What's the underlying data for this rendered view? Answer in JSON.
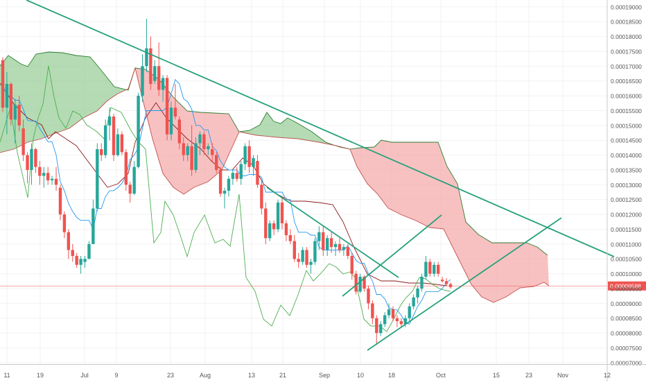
{
  "chart_data": {
    "type": "candlestick",
    "title": "",
    "price_axis": {
      "ticks": [
        "0.00019000",
        "0.00018500",
        "0.00018000",
        "0.00017500",
        "0.00017000",
        "0.00016500",
        "0.00016000",
        "0.00015500",
        "0.00015000",
        "0.00014500",
        "0.00014000",
        "0.00013500",
        "0.00013000",
        "0.00012500",
        "0.00012000",
        "0.00011500",
        "0.00011000",
        "0.00010500",
        "0.00010000",
        "0.00009500",
        "0.00009000",
        "0.00008500",
        "0.00008000",
        "0.00007500",
        "0.00007000"
      ],
      "current_price_label": "0.00009588",
      "current_price": 9.588e-05,
      "range": [
        6.95e-05,
        0.0001923
      ]
    },
    "time_axis": {
      "labels": [
        "11",
        "19",
        "Jul",
        "9",
        "23",
        "Aug",
        "13",
        "21",
        "Sep",
        "10",
        "18",
        "Oct",
        "15",
        "23",
        "Nov",
        "12"
      ]
    },
    "candles_ohlc": [
      [
        0.000172,
        0.000173,
        0.0001545,
        0.000156
      ],
      [
        0.000156,
        0.000168,
        0.000147,
        0.000164
      ],
      [
        0.000164,
        0.0001645,
        0.00015,
        0.000152
      ],
      [
        0.000152,
        0.000159,
        0.000144,
        0.000157
      ],
      [
        0.000157,
        0.00016,
        0.000148,
        0.00015
      ],
      [
        0.000149,
        0.000152,
        0.000138,
        0.00014
      ],
      [
        0.00014,
        0.000141,
        0.0001305,
        0.000135
      ],
      [
        0.000135,
        0.000144,
        0.00013,
        0.000142
      ],
      [
        0.000142,
        0.0001425,
        0.000134,
        0.000136
      ],
      [
        0.000136,
        0.000138,
        0.00013,
        0.000133
      ],
      [
        0.000133,
        0.000136,
        0.000129,
        0.000134
      ],
      [
        0.000134,
        0.000136,
        0.00013,
        0.0001315
      ],
      [
        0.0001315,
        0.000133,
        0.00013,
        0.000132
      ],
      [
        0.000132,
        0.000136,
        0.000128,
        0.00013
      ],
      [
        0.000129,
        0.00013,
        0.000118,
        0.00012
      ],
      [
        0.00012,
        0.000121,
        0.000112,
        0.000114
      ],
      [
        0.000114,
        0.000115,
        0.000105,
        0.000108
      ],
      [
        0.000108,
        0.00011,
        0.000104,
        0.000106
      ],
      [
        0.000106,
        0.000107,
        0.000102,
        0.000103
      ],
      [
        0.000103,
        0.000106,
        0.0001,
        0.000105
      ],
      [
        0.000104,
        0.000106,
        0.000102,
        0.000105
      ],
      [
        0.000105,
        0.000111,
        0.000105,
        0.00011
      ],
      [
        0.00011,
        0.000125,
        0.00011,
        0.000122
      ],
      [
        0.000122,
        0.000144,
        0.000121,
        0.000142
      ],
      [
        0.000142,
        0.000144,
        0.000138,
        0.00014
      ],
      [
        0.00014,
        0.000152,
        0.000139,
        0.00015
      ],
      [
        0.00015,
        0.000156,
        0.000145,
        0.000153
      ],
      [
        0.000153,
        0.000154,
        0.000138,
        0.00014
      ],
      [
        0.00014,
        0.000149,
        0.0001395,
        0.000147
      ],
      [
        0.000147,
        0.000148,
        0.00014,
        0.000141
      ],
      [
        0.000141,
        0.000142,
        0.000128,
        0.00013
      ],
      [
        0.00013,
        0.000131,
        0.000124,
        0.000127
      ],
      [
        0.000127,
        0.000138,
        0.0001265,
        0.000136
      ],
      [
        0.000136,
        0.000161,
        0.0001355,
        0.00016
      ],
      [
        0.00016,
        0.000174,
        0.000158,
        0.00017
      ],
      [
        0.00017,
        0.000186,
        0.000168,
        0.000176
      ],
      [
        0.000176,
        0.00018,
        0.000162,
        0.000164
      ],
      [
        0.000165,
        0.000172,
        0.000164,
        0.00017
      ],
      [
        0.00017,
        0.000178,
        0.00016,
        0.000162
      ],
      [
        0.000162,
        0.000167,
        0.000158,
        0.000166
      ],
      [
        0.000166,
        0.000167,
        0.000145,
        0.000147
      ],
      [
        0.000147,
        0.000158,
        0.000145,
        0.000156
      ],
      [
        0.000156,
        0.000164,
        0.000152,
        0.000153
      ],
      [
        0.000152,
        0.000153,
        0.000142,
        0.000144
      ],
      [
        0.000144,
        0.000146,
        0.000138,
        0.00014
      ],
      [
        0.00014,
        0.000144,
        0.000138,
        0.000143
      ],
      [
        0.000143,
        0.00015,
        0.000133,
        0.000135
      ],
      [
        0.000135,
        0.000146,
        0.000134,
        0.000144
      ],
      [
        0.000144,
        0.000148,
        0.00014,
        0.000147
      ],
      [
        0.000147,
        0.000148,
        0.00014,
        0.000142
      ],
      [
        0.000142,
        0.000144,
        0.00014,
        0.000143
      ],
      [
        0.000142,
        0.000144,
        0.000138,
        0.00014
      ],
      [
        0.00014,
        0.000141,
        0.000134,
        0.000135
      ],
      [
        0.000135,
        0.000136,
        0.000126,
        0.000127
      ],
      [
        0.000127,
        0.000129,
        0.000122,
        0.000128
      ],
      [
        0.000128,
        0.000133,
        0.000126,
        0.000132
      ],
      [
        0.000132,
        0.000135,
        0.00013,
        0.000134
      ],
      [
        0.000134,
        0.000136,
        0.000131,
        0.000132
      ],
      [
        0.000132,
        0.000138,
        0.00013,
        0.000137
      ],
      [
        0.000137,
        0.000144,
        0.000135,
        0.000143
      ],
      [
        0.000143,
        0.000145,
        0.000134,
        0.000136
      ],
      [
        0.000136,
        0.00014,
        0.000133,
        0.000139
      ],
      [
        0.000138,
        0.00014,
        0.000129,
        0.00013
      ],
      [
        0.00013,
        0.000131,
        0.00012,
        0.000122
      ],
      [
        0.000122,
        0.000124,
        0.00011,
        0.000112
      ],
      [
        0.000112,
        0.000118,
        0.000111,
        0.000117
      ],
      [
        0.000117,
        0.000118,
        0.000113,
        0.000115
      ],
      [
        0.000115,
        0.000125,
        0.000114,
        0.000124
      ],
      [
        0.000124,
        0.000126,
        0.000115,
        0.000117
      ],
      [
        0.000117,
        0.000118,
        0.000111,
        0.000113
      ],
      [
        0.000113,
        0.000115,
        0.00011,
        0.000111
      ],
      [
        0.000111,
        0.000113,
        0.000104,
        0.000105
      ],
      [
        0.000105,
        0.000107,
        0.000102,
        0.000104
      ],
      [
        0.000104,
        0.000109,
        0.000103,
        0.000108
      ],
      [
        0.000108,
        0.000109,
        0.000102,
        0.000103
      ],
      [
        0.000103,
        0.000105,
        0.0001,
        0.000104
      ],
      [
        0.000104,
        0.000112,
        0.000103,
        0.000111
      ],
      [
        0.000111,
        0.000116,
        0.000108,
        0.000114
      ],
      [
        0.000114,
        0.000116,
        0.000106,
        0.000108
      ],
      [
        0.000108,
        0.000113,
        0.000106,
        0.000112
      ],
      [
        0.000112,
        0.000114,
        0.000107,
        0.000109
      ],
      [
        0.000109,
        0.000111,
        0.000106,
        0.00011
      ],
      [
        0.00011,
        0.000112,
        0.000107,
        0.000108
      ],
      [
        0.000108,
        0.00011,
        0.000106,
        0.000109
      ],
      [
        0.000109,
        0.00011,
        0.000105,
        0.000106
      ],
      [
        0.000106,
        0.000107,
        9.8e-05,
        0.0001
      ],
      [
        0.0001,
        0.000101,
        9.3e-05,
        9.4e-05
      ],
      [
        9.4e-05,
        0.0001,
        9.35e-05,
        9.9e-05
      ],
      [
        9.9e-05,
        9.95e-05,
        9.4e-05,
        9.5e-05
      ],
      [
        9.5e-05,
        9.6e-05,
        8.8e-05,
        9e-05
      ],
      [
        9e-05,
        9.1e-05,
        8.3e-05,
        8.5e-05
      ],
      [
        8.5e-05,
        8.6e-05,
        7.6e-05,
        8e-05
      ],
      [
        8e-05,
        8.4e-05,
        7.9e-05,
        8.3e-05
      ],
      [
        8.3e-05,
        8.7e-05,
        8.2e-05,
        8.6e-05
      ],
      [
        8.6e-05,
        9e-05,
        8.5e-05,
        8.8e-05
      ],
      [
        8.8e-05,
        8.9e-05,
        8.4e-05,
        8.5e-05
      ],
      [
        8.5e-05,
        8.6e-05,
        8.2e-05,
        8.4e-05
      ],
      [
        8.4e-05,
        8.5e-05,
        8.2e-05,
        8.3e-05
      ],
      [
        8.3e-05,
        8.6e-05,
        8.2e-05,
        8.5e-05
      ],
      [
        8.5e-05,
        9e-05,
        8.4e-05,
        8.9e-05
      ],
      [
        8.9e-05,
        9.3e-05,
        8.8e-05,
        9.2e-05
      ],
      [
        9.2e-05,
        9.6e-05,
        9e-05,
        9.5e-05
      ],
      [
        9.5e-05,
        0.0001,
        9.4e-05,
        9.9e-05
      ],
      [
        9.9e-05,
        0.000106,
        9.8e-05,
        0.000104
      ],
      [
        0.000104,
        0.000105,
        9.9e-05,
        0.0001
      ],
      [
        0.0001,
        0.000104,
        9.9e-05,
        0.000103
      ],
      [
        0.000103,
        0.000104,
        9.9e-05,
        0.0001
      ],
      [
        9.8e-05,
        9.9e-05,
        9.7e-05,
        9.75e-05
      ],
      [
        9.75e-05,
        9.85e-05,
        9.6e-05,
        9.65e-05
      ],
      [
        9.65e-05,
        9.7e-05,
        9.5e-05,
        9.55e-05
      ]
    ],
    "indicators": {
      "ichimoku_cloud": {
        "bullish_fill": "#8cc88c",
        "bearish_fill": "#f4a0a0",
        "span_a_color": "#2e7d32",
        "span_b_color": "#c0504d"
      },
      "conversion_line_color": "#2196f3",
      "base_line_color": "#8b1a1a",
      "lagging_span_color": "#4caf50"
    },
    "trendlines_color": "#26a17b",
    "grid": true,
    "colors": {
      "up_candle": "#26a69a",
      "down_candle": "#ef5350",
      "current_price_line": "#ef5350",
      "current_price_label_bg": "#ef5350",
      "axis_text": "#555555",
      "grid": "#f2f2f2"
    }
  }
}
